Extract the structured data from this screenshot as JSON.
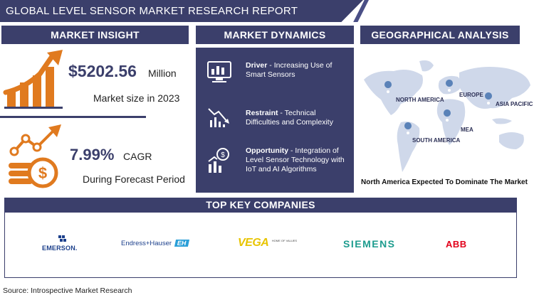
{
  "title": "GLOBAL LEVEL SENSOR MARKET RESEARCH REPORT",
  "insight": {
    "header": "MARKET INSIGHT",
    "market_value": "$5202.56",
    "market_unit": "Million",
    "market_desc": "Market size in 2023",
    "cagr_value": "7.99%",
    "cagr_unit": "CAGR",
    "cagr_desc": "During Forecast Period"
  },
  "dynamics": {
    "header": "MARKET DYNAMICS",
    "items": [
      {
        "label": "Driver",
        "text": " - Increasing Use of Smart Sensors",
        "icon": "monitor-chart-icon"
      },
      {
        "label": "Restraint",
        "text": " - Technical Difficulties and Complexity",
        "icon": "declining-chart-icon"
      },
      {
        "label": "Opportunity",
        "text": " - Integration of Level Sensor Technology with IoT and AI Algorithms",
        "icon": "dollar-growth-icon"
      }
    ]
  },
  "geo": {
    "header": "GEOGRAPHICAL ANALYSIS",
    "regions": [
      "NORTH AMERICA",
      "EUROPE",
      "ASIA PACIFIC",
      "MEA",
      "SOUTH AMERICA"
    ],
    "footer": "North America  Expected To Dominate The Market"
  },
  "companies": {
    "header": "TOP KEY COMPANIES",
    "list": [
      "EMERSON.",
      "Endress+Hauser",
      "VEGA",
      "SIEMENS",
      "ABB"
    ],
    "eh_badge": "EH",
    "vega_tag": "HOME OF VALUES"
  },
  "source": "Source: Introspective Market Research",
  "colors": {
    "navy": "#3b3f6b",
    "orange": "#e07a1f",
    "map": "#cfd8ea",
    "pin": "#5a82b8"
  }
}
